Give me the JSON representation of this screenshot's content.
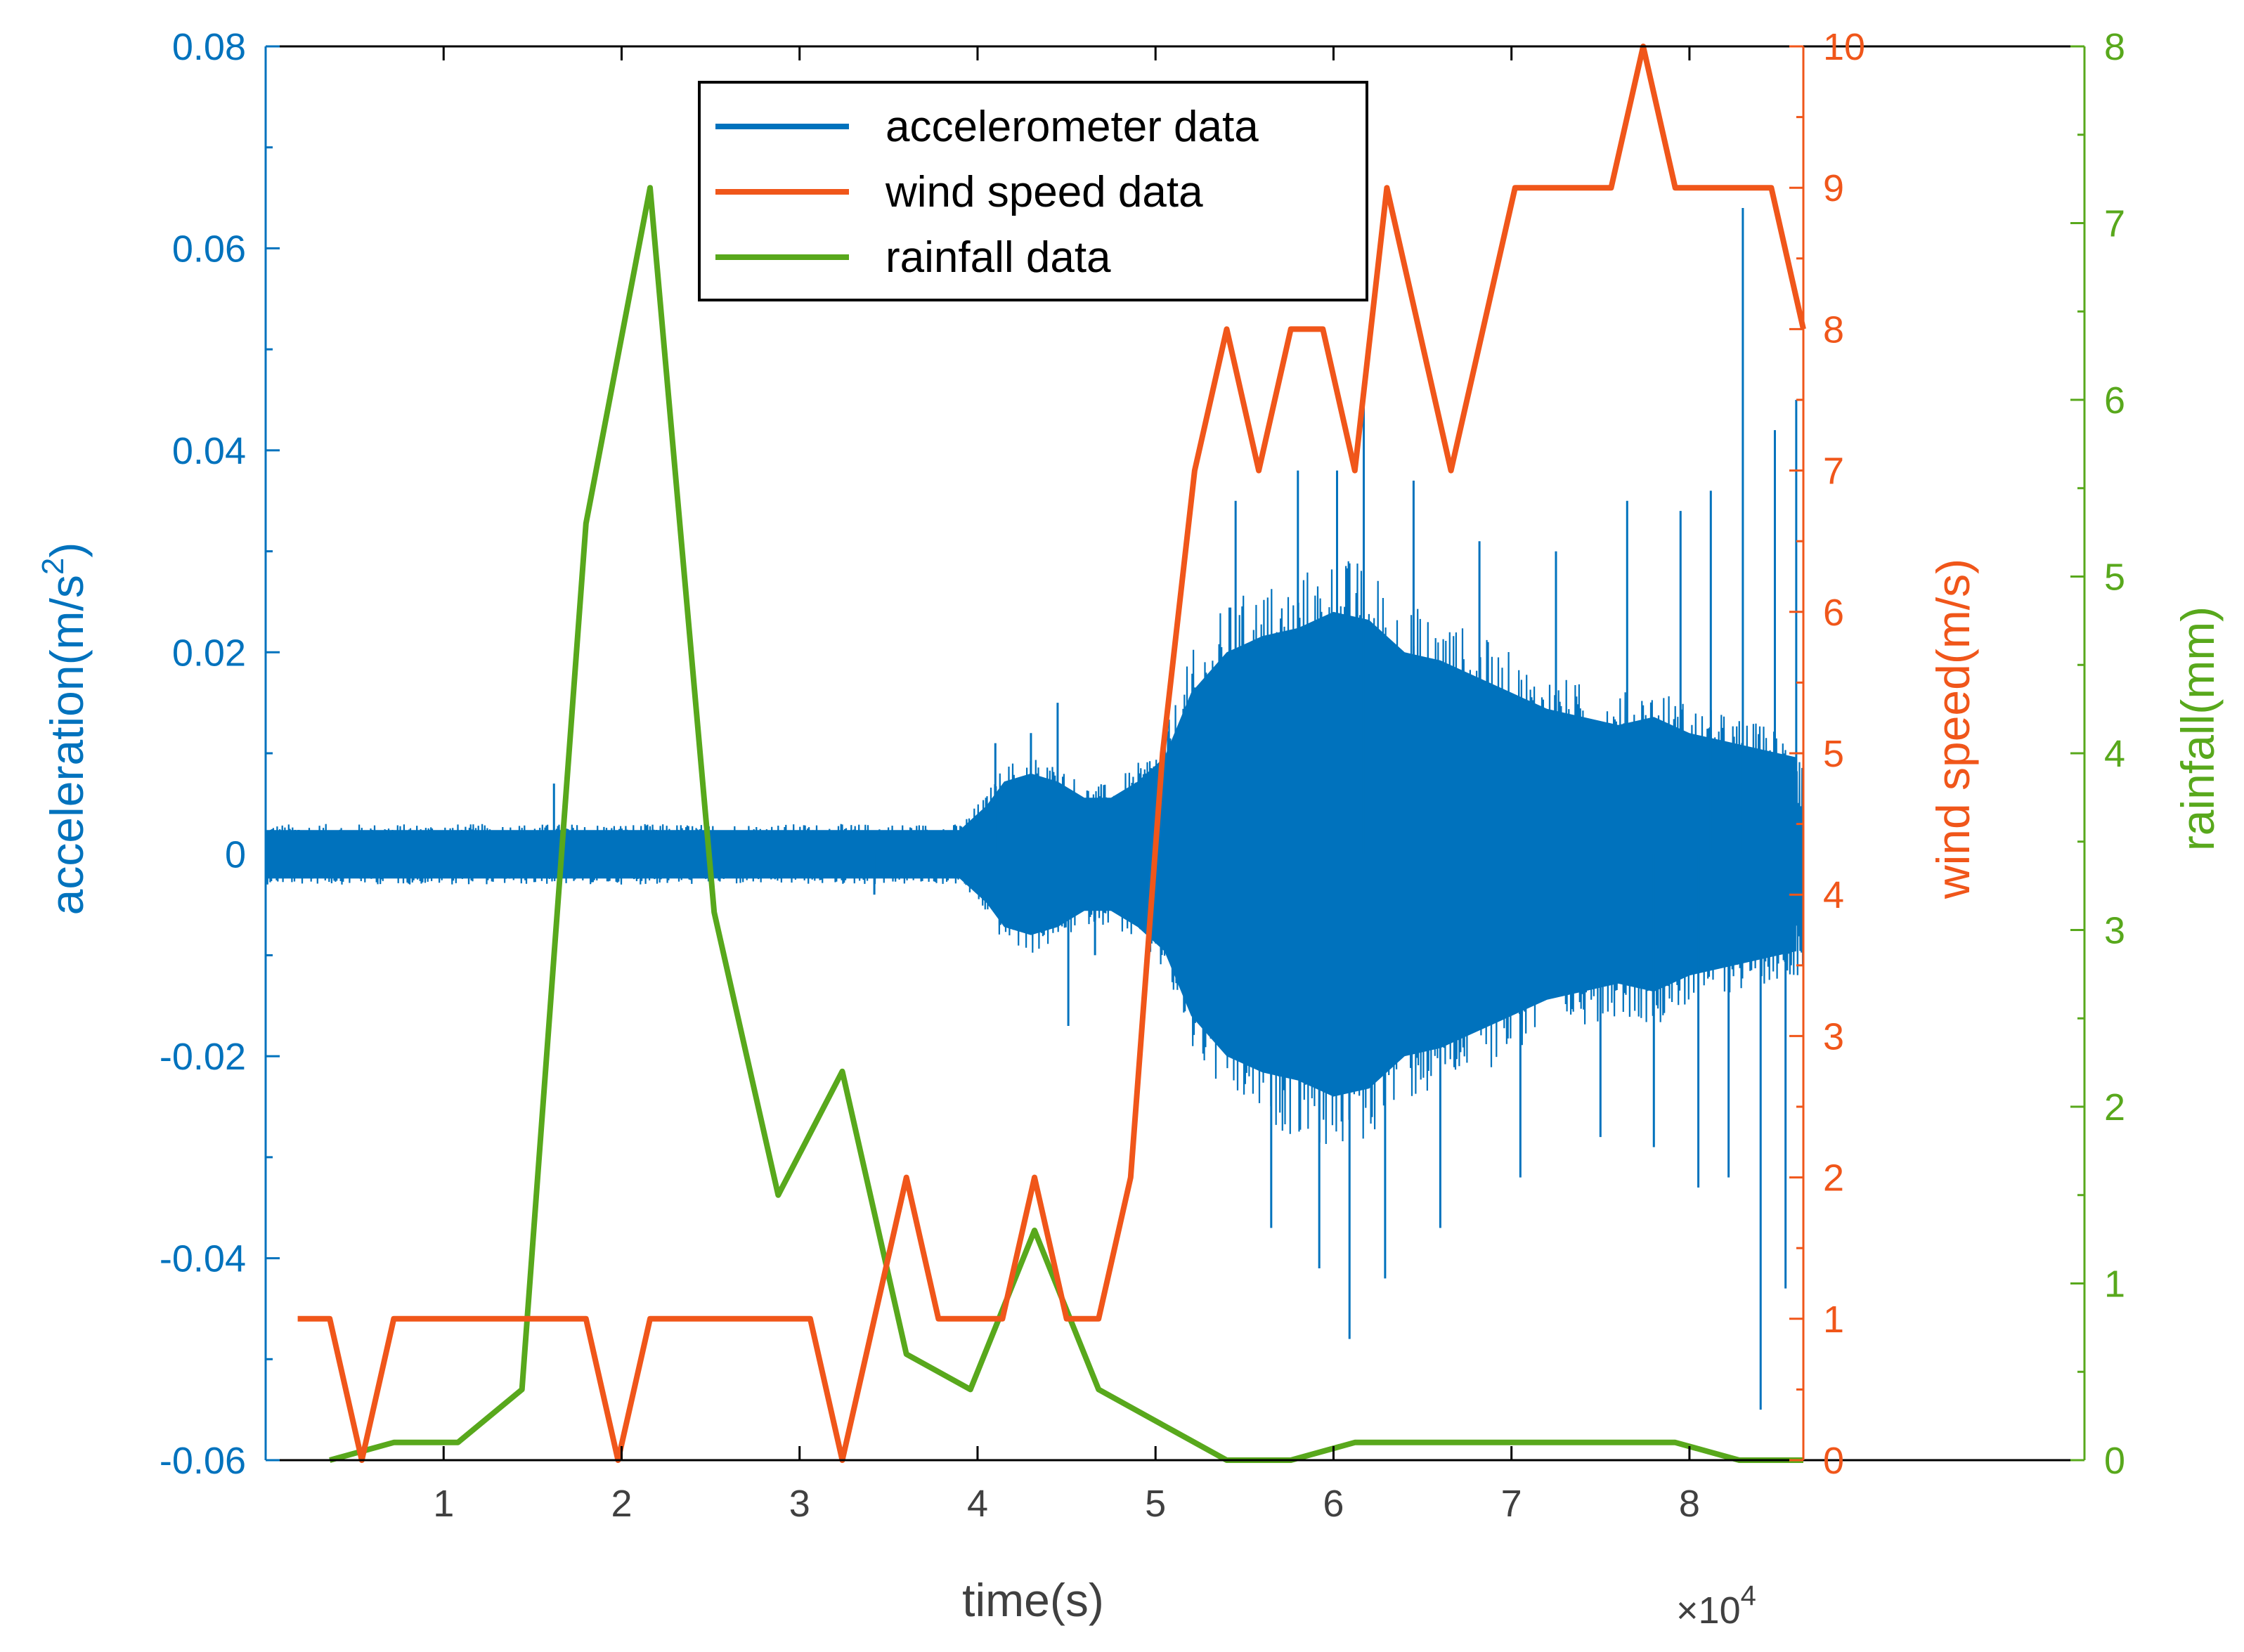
{
  "chart_data": {
    "type": "line",
    "xlabel": "time(s)",
    "x_exponent_label": "×10",
    "x_exponent_power": "4",
    "x_scale": 10000,
    "xlim": [
      0,
      86400
    ],
    "x_ticks": [
      10000,
      20000,
      30000,
      40000,
      50000,
      60000,
      70000,
      80000
    ],
    "x_tick_labels": [
      "1",
      "2",
      "3",
      "4",
      "5",
      "6",
      "7",
      "8"
    ],
    "legend_position": "top-center",
    "grid": false,
    "colors": {
      "acceleration": "#0072BD",
      "wind": "#F0561A",
      "rain": "#58A81C",
      "axes": "#000000",
      "text": "#404040"
    },
    "axes": {
      "left": {
        "label_main": "acceleration(m/s",
        "label_sup": "2",
        "label_end": ")",
        "ylim": [
          -0.06,
          0.08
        ],
        "ticks": [
          -0.06,
          -0.04,
          -0.02,
          0,
          0.02,
          0.04,
          0.06,
          0.08
        ],
        "tick_labels": [
          "-0.06",
          "-0.04",
          "-0.02",
          "0",
          "0.02",
          "0.04",
          "0.06",
          "0.08"
        ]
      },
      "right1": {
        "label": "wind speed(m/s)",
        "ylim": [
          0,
          10
        ],
        "ticks": [
          0,
          1,
          2,
          3,
          4,
          5,
          6,
          7,
          8,
          9,
          10
        ],
        "tick_labels": [
          "0",
          "1",
          "2",
          "3",
          "4",
          "5",
          "6",
          "7",
          "8",
          "9",
          "10"
        ]
      },
      "right2": {
        "label": "rainfall(mm)",
        "ylim": [
          0,
          8
        ],
        "ticks": [
          0,
          1,
          2,
          3,
          4,
          5,
          6,
          7,
          8
        ],
        "tick_labels": [
          "0",
          "1",
          "2",
          "3",
          "4",
          "5",
          "6",
          "7",
          "8"
        ]
      }
    },
    "series": [
      {
        "name": "accelerometer data",
        "axis": "left",
        "kind": "envelope",
        "x": [
          0,
          5000,
          10000,
          15000,
          20000,
          25000,
          30000,
          35000,
          39000,
          40500,
          41500,
          43000,
          44500,
          46000,
          47500,
          49000,
          50500,
          52000,
          54000,
          56000,
          58000,
          60000,
          62000,
          64000,
          66000,
          68000,
          70000,
          72000,
          74000,
          76000,
          78000,
          80000,
          82000,
          84000,
          86000
        ],
        "upper": [
          0.003,
          0.003,
          0.003,
          0.003,
          0.003,
          0.003,
          0.003,
          0.003,
          0.003,
          0.006,
          0.009,
          0.01,
          0.009,
          0.007,
          0.007,
          0.009,
          0.012,
          0.02,
          0.025,
          0.027,
          0.028,
          0.03,
          0.029,
          0.025,
          0.024,
          0.022,
          0.02,
          0.018,
          0.017,
          0.016,
          0.017,
          0.015,
          0.014,
          0.013,
          0.012
        ],
        "lower": [
          -0.003,
          -0.003,
          -0.003,
          -0.003,
          -0.003,
          -0.003,
          -0.003,
          -0.003,
          -0.003,
          -0.006,
          -0.009,
          -0.01,
          -0.009,
          -0.007,
          -0.007,
          -0.009,
          -0.012,
          -0.02,
          -0.025,
          -0.027,
          -0.028,
          -0.03,
          -0.029,
          -0.025,
          -0.024,
          -0.022,
          -0.02,
          -0.018,
          -0.017,
          -0.016,
          -0.017,
          -0.015,
          -0.014,
          -0.013,
          -0.012
        ],
        "spike_x": [
          16200,
          34200,
          41000,
          43000,
          44500,
          45100,
          46600,
          49000,
          54500,
          56500,
          58000,
          59200,
          60200,
          60900,
          61700,
          62900,
          64500,
          66000,
          68200,
          70500,
          72500,
          75000,
          76500,
          78000,
          79500,
          80500,
          81200,
          82200,
          83000,
          84000,
          84800,
          85400,
          86000
        ],
        "spike_y": [
          0.007,
          -0.004,
          0.011,
          0.012,
          0.015,
          -0.017,
          -0.01,
          0.006,
          0.035,
          -0.037,
          0.038,
          -0.041,
          0.038,
          -0.048,
          0.046,
          -0.042,
          0.037,
          -0.037,
          0.031,
          -0.032,
          0.03,
          -0.028,
          0.035,
          -0.029,
          0.034,
          -0.033,
          0.036,
          -0.032,
          0.064,
          -0.055,
          0.042,
          -0.043,
          0.045
        ]
      },
      {
        "name": "wind speed data",
        "axis": "right1",
        "kind": "line",
        "x": [
          1800,
          3600,
          5400,
          7200,
          9000,
          10800,
          12600,
          14400,
          16200,
          18000,
          19800,
          21600,
          23400,
          25200,
          27000,
          28800,
          30600,
          32400,
          34200,
          36000,
          37800,
          39600,
          41400,
          43200,
          45000,
          46800,
          48600,
          50400,
          52200,
          54000,
          55800,
          57600,
          59400,
          61200,
          63000,
          64800,
          66600,
          68400,
          70200,
          72000,
          73800,
          75600,
          77400,
          79200,
          81000,
          82800,
          84600,
          86400
        ],
        "y": [
          1,
          1,
          0,
          1,
          1,
          1,
          1,
          1,
          1,
          1,
          0,
          1,
          1,
          1,
          1,
          1,
          1,
          0,
          1,
          2,
          1,
          1,
          1,
          2,
          1,
          1,
          2,
          5,
          7,
          8,
          7,
          8,
          8,
          7,
          9,
          8,
          7,
          8,
          9,
          9,
          9,
          9,
          10,
          9,
          9,
          9,
          9,
          8
        ]
      },
      {
        "name": "rainfall data",
        "axis": "right2",
        "kind": "line",
        "x": [
          3600,
          5400,
          7200,
          9000,
          10800,
          14400,
          18000,
          21600,
          25200,
          28800,
          32400,
          36000,
          39600,
          43200,
          46800,
          50400,
          54000,
          57600,
          61200,
          64800,
          68400,
          72000,
          75600,
          79200,
          82800,
          86400
        ],
        "y": [
          0,
          0.05,
          0.1,
          0.1,
          0.1,
          0.4,
          5.3,
          7.2,
          3.1,
          1.5,
          2.2,
          0.6,
          0.4,
          1.3,
          0.4,
          0.2,
          0,
          0,
          0.1,
          0.1,
          0.1,
          0.1,
          0.1,
          0.1,
          0,
          0
        ]
      }
    ]
  }
}
